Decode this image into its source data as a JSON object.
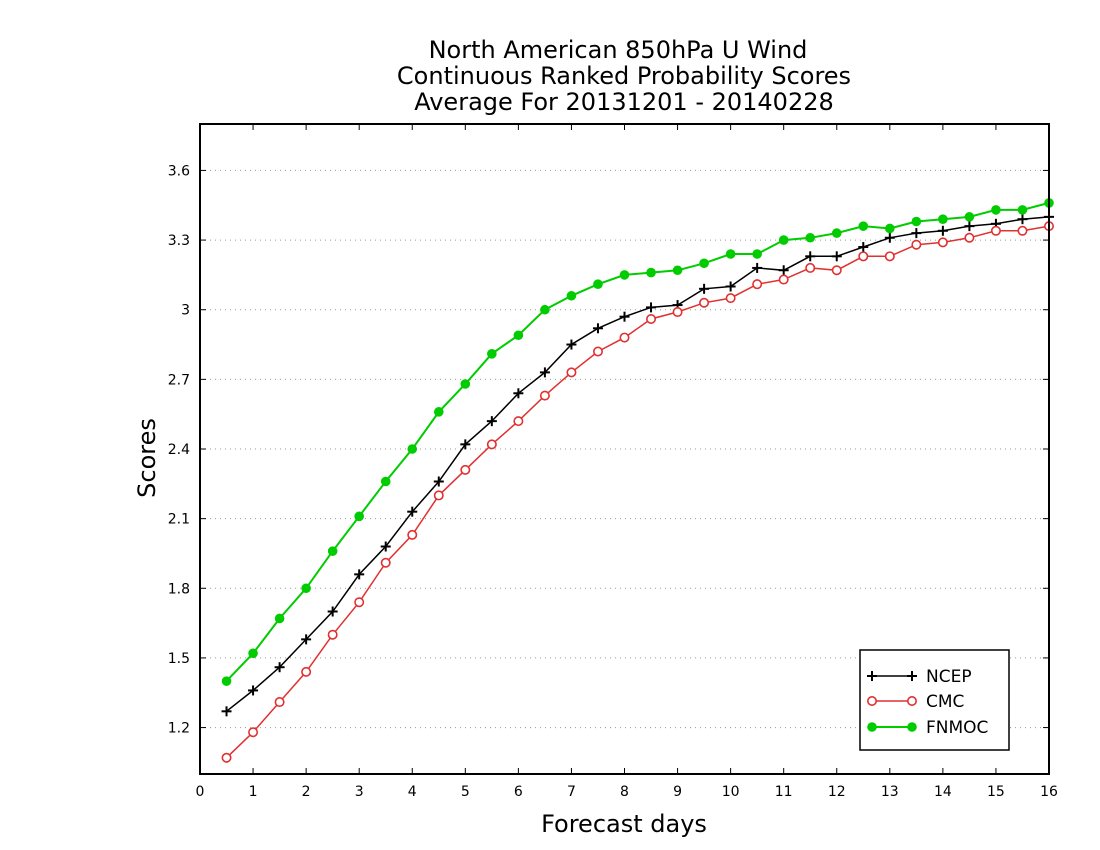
{
  "chart_data": {
    "type": "line",
    "title_lines": [
      "North American 850hPa U Wind",
      "Continuous Ranked Probability Scores",
      "Average For 20131201 - 20140228"
    ],
    "xlabel": "Forecast days",
    "ylabel": "Scores",
    "xlim": [
      0,
      16
    ],
    "ylim": [
      1.0,
      3.8
    ],
    "x_ticks": [
      0,
      1,
      2,
      3,
      4,
      5,
      6,
      7,
      8,
      9,
      10,
      11,
      12,
      13,
      14,
      15,
      16
    ],
    "y_ticks": [
      1.2,
      1.5,
      1.8,
      2.1,
      2.4,
      2.7,
      3.0,
      3.3,
      3.6
    ],
    "y_tick_labels": [
      "1.2",
      "1.5",
      "1.8",
      "2.1",
      "2.4",
      "2.7",
      "3",
      "3.3",
      "3.6"
    ],
    "grid": "horizontal dotted",
    "legend_position": "bottom-right",
    "x": [
      0.5,
      1,
      1.5,
      2,
      2.5,
      3,
      3.5,
      4,
      4.5,
      5,
      5.5,
      6,
      6.5,
      7,
      7.5,
      8,
      8.5,
      9,
      9.5,
      10,
      10.5,
      11,
      11.5,
      12,
      12.5,
      13,
      13.5,
      14,
      14.5,
      15,
      15.5,
      16
    ],
    "series": [
      {
        "name": "NCEP",
        "color": "#000000",
        "marker": "plus",
        "values": [
          1.27,
          1.36,
          1.46,
          1.58,
          1.7,
          1.86,
          1.98,
          2.13,
          2.26,
          2.42,
          2.52,
          2.64,
          2.73,
          2.85,
          2.92,
          2.97,
          3.01,
          3.02,
          3.09,
          3.1,
          3.18,
          3.17,
          3.23,
          3.23,
          3.27,
          3.31,
          3.33,
          3.34,
          3.36,
          3.37,
          3.39,
          3.4
        ]
      },
      {
        "name": "CMC",
        "color": "#e03030",
        "marker": "open-circle",
        "values": [
          1.07,
          1.18,
          1.31,
          1.44,
          1.6,
          1.74,
          1.91,
          2.03,
          2.2,
          2.31,
          2.42,
          2.52,
          2.63,
          2.73,
          2.82,
          2.88,
          2.96,
          2.99,
          3.03,
          3.05,
          3.11,
          3.13,
          3.18,
          3.17,
          3.23,
          3.23,
          3.28,
          3.29,
          3.31,
          3.34,
          3.34,
          3.36
        ]
      },
      {
        "name": "FNMOC",
        "color": "#00cc00",
        "marker": "filled-circle",
        "values": [
          1.4,
          1.52,
          1.67,
          1.8,
          1.96,
          2.11,
          2.26,
          2.4,
          2.56,
          2.68,
          2.81,
          2.89,
          3.0,
          3.06,
          3.11,
          3.15,
          3.16,
          3.17,
          3.2,
          3.24,
          3.24,
          3.3,
          3.31,
          3.33,
          3.36,
          3.35,
          3.38,
          3.39,
          3.4,
          3.43,
          3.43,
          3.46
        ]
      }
    ]
  }
}
